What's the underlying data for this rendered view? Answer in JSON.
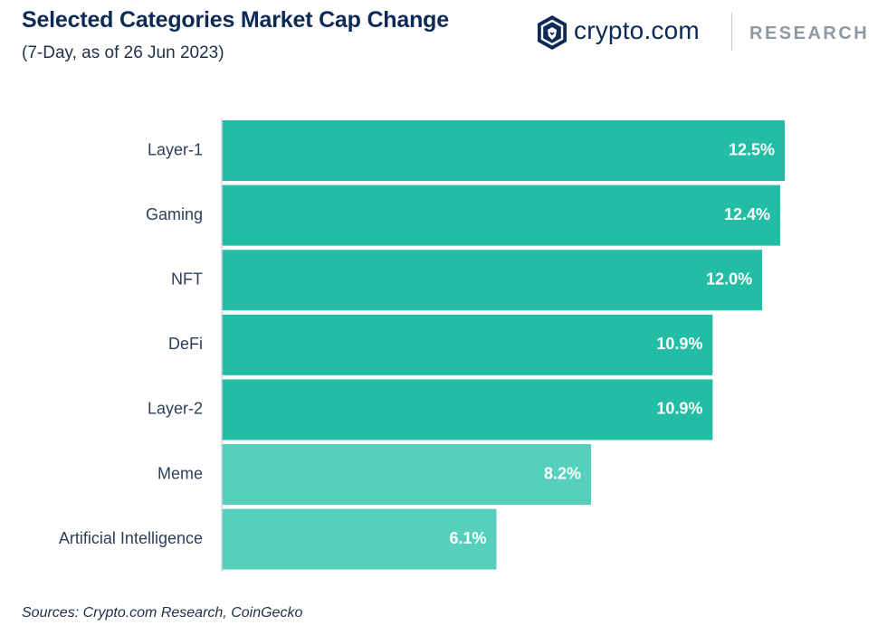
{
  "header": {
    "title": "Selected Categories Market Cap Change",
    "subtitle": "(7-Day, as of 26 Jun 2023)"
  },
  "logo": {
    "icon": "crypto-com-lion-shield-icon",
    "brand": "crypto.com",
    "tagline": "RESEARCH"
  },
  "footer": {
    "source": "Sources: Crypto.com Research, CoinGecko"
  },
  "colors": {
    "bar_primary": "#22bda4",
    "bar_secondary": "#56cfbc",
    "axis": "#d3d8de",
    "title": "#0b2a57"
  },
  "chart_data": {
    "type": "bar",
    "orientation": "horizontal",
    "categories": [
      "Layer-1",
      "Gaming",
      "NFT",
      "DeFi",
      "Layer-2",
      "Meme",
      "Artificial Intelligence"
    ],
    "values": [
      12.5,
      12.4,
      12.0,
      10.9,
      10.9,
      8.2,
      6.1
    ],
    "value_labels": [
      "12.5%",
      "12.4%",
      "12.0%",
      "10.9%",
      "10.9%",
      "8.2%",
      "6.1%"
    ],
    "bar_colors": [
      "#22bda4",
      "#22bda4",
      "#22bda4",
      "#22bda4",
      "#22bda4",
      "#56cfbc",
      "#56cfbc"
    ],
    "xlim": [
      0,
      12.5
    ],
    "grid": false,
    "legend": "none"
  }
}
